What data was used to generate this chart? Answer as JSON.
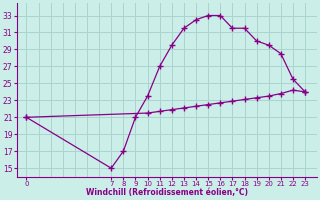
{
  "xlabel": "Windchill (Refroidissement éolien,°C)",
  "bg_color": "#cceee8",
  "grid_color": "#aad4ce",
  "line_color": "#880088",
  "x_main": [
    0,
    7,
    8,
    9,
    10,
    11,
    12,
    13,
    14,
    15,
    16,
    17,
    18,
    19,
    20,
    21,
    22,
    23
  ],
  "y_main": [
    21,
    15,
    17,
    21,
    23.5,
    27,
    29.5,
    31.5,
    32.5,
    33,
    33,
    31.5,
    31.5,
    30,
    29.5,
    28.5,
    25.5,
    24
  ],
  "x_flat": [
    0,
    10,
    11,
    12,
    13,
    14,
    15,
    16,
    17,
    18,
    19,
    20,
    21,
    22,
    23
  ],
  "y_flat": [
    21,
    21.5,
    21.7,
    21.9,
    22.1,
    22.3,
    22.5,
    22.7,
    22.9,
    23.1,
    23.3,
    23.5,
    23.8,
    24.2,
    24
  ],
  "yticks": [
    15,
    17,
    19,
    21,
    23,
    25,
    27,
    29,
    31,
    33
  ],
  "xticks": [
    0,
    7,
    8,
    9,
    10,
    11,
    12,
    13,
    14,
    15,
    16,
    17,
    18,
    19,
    20,
    21,
    22,
    23
  ],
  "xlabels": [
    "0",
    "7",
    "8",
    "9",
    "10",
    "11",
    "12",
    "13",
    "14",
    "15",
    "16",
    "17",
    "18",
    "19",
    "20",
    "21",
    "22",
    "23"
  ],
  "ylim": [
    14.0,
    34.5
  ],
  "xlim": [
    -0.8,
    24.0
  ],
  "figw": 3.2,
  "figh": 2.0,
  "dpi": 100
}
